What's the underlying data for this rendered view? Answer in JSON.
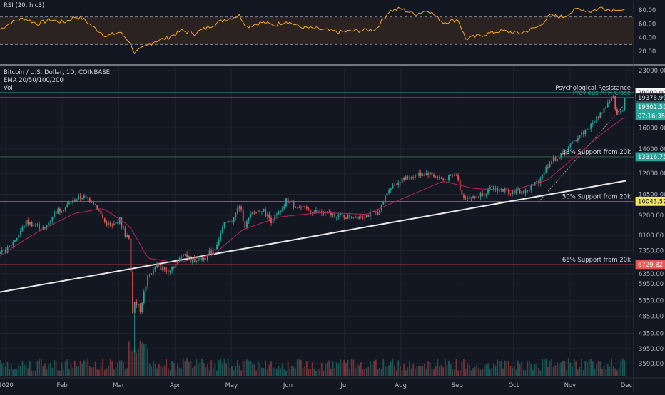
{
  "colors": {
    "background": "#131722",
    "grid": "#1f2330",
    "text": "#b2b5be",
    "up": "#26a69a",
    "down": "#ef5350",
    "rsi_line": "#f5a623",
    "rsi_band": "#2b2222",
    "trendline": "#e8e8e8",
    "ema_fast": "#b7245e",
    "ema_slow": "#8e1f3e",
    "resistance_line": "#26a69a",
    "support_line_33": "#3a6e4a",
    "support_line_50": "#8b8b3a",
    "support_line_66": "#a33a3a",
    "dotted_trend": "#9a9aa0"
  },
  "rsi_panel": {
    "title": "RSI (20, hlc3)",
    "ticks": [
      "80.00",
      "60.00",
      "40.00",
      "20.00"
    ],
    "upper_band": 70,
    "lower_band": 30
  },
  "price_panel": {
    "legend": {
      "symbol": "Bitcoin / U.S. Dollar, 1D, COINBASE",
      "indicator": "EMA 20/50/100/200",
      "volume": "Vol"
    },
    "ticks": [
      "23000.00",
      "16000.00",
      "14000.00",
      "12000.00",
      "10500.00",
      "9200.00",
      "8100.00",
      "7350.00",
      "6350.00",
      "5950.00",
      "5350.00",
      "4850.00",
      "4350.00",
      "3950.00",
      "3590.00"
    ],
    "price_labels": [
      {
        "value": "20000.00",
        "bg": "#ffffff",
        "fg": "#131722",
        "price": 20000
      },
      {
        "value": "19378.99",
        "bg": "#131722",
        "fg": "#d1d4dc",
        "price": 19379,
        "border": "#26a69a"
      },
      {
        "value": "19302.55",
        "bg": "#26a69a",
        "fg": "#ffffff",
        "price": 18250
      },
      {
        "value": "07:16:35",
        "bg": "#26a69a",
        "fg": "#ffffff",
        "price": 17250
      },
      {
        "value": "13316.75",
        "bg": "#26a69a",
        "fg": "#ffffff",
        "price": 13317
      },
      {
        "value": "10043.57",
        "bg": "#f2e85c",
        "fg": "#131722",
        "price": 10044
      },
      {
        "value": "6729.82",
        "bg": "#ef5350",
        "fg": "#ffffff",
        "price": 6730
      }
    ],
    "annotations": [
      {
        "text": "Psychological Resistance",
        "price": 20000,
        "color": "#d1d4dc",
        "level": 20000,
        "line": "#26a69a"
      },
      {
        "text": "Previous ATH Close",
        "price": 19379,
        "color": "#26a69a",
        "level": 19379,
        "line": "#26a69a"
      },
      {
        "text": "33% Support from 20k",
        "price": 13317,
        "color": "#d1d4dc",
        "level": 13317,
        "line": "#3a6e4a"
      },
      {
        "text": "50% Support from 20k",
        "price": 10044,
        "color": "#d1d4dc",
        "level": 10044,
        "line": "#8b8b3a"
      },
      {
        "text": "66% Support from 20k",
        "price": 6730,
        "color": "#d1d4dc",
        "level": 6730,
        "line": "#a33a3a"
      }
    ]
  },
  "x_axis": {
    "labels": [
      "2020",
      "Feb",
      "Mar",
      "Apr",
      "May",
      "Jun",
      "Jul",
      "Aug",
      "Sep",
      "Oct",
      "Nov",
      "Dec"
    ]
  },
  "chart_data": {
    "type": "candlestick",
    "symbol": "Bitcoin / U.S. Dollar, 1D, COINBASE",
    "x_start": "2020-01-01",
    "x_end": "2020-12-01",
    "y_scale": "log",
    "trendline": {
      "from": [
        "2020-01-01",
        5650
      ],
      "to": [
        "2020-12-01",
        11450
      ]
    },
    "dotted_trendline": {
      "from": [
        "2020-10-15",
        10000
      ],
      "to": [
        "2020-12-01",
        18800
      ]
    },
    "close_path": [
      [
        "2020-01-01",
        7200
      ],
      [
        "2020-01-05",
        7400
      ],
      [
        "2020-01-10",
        8000
      ],
      [
        "2020-01-15",
        8800
      ],
      [
        "2020-01-20",
        8650
      ],
      [
        "2020-01-25",
        8400
      ],
      [
        "2020-01-30",
        9350
      ],
      [
        "2020-02-05",
        9700
      ],
      [
        "2020-02-10",
        10150
      ],
      [
        "2020-02-14",
        10350
      ],
      [
        "2020-02-19",
        10100
      ],
      [
        "2020-02-22",
        9650
      ],
      [
        "2020-02-26",
        8800
      ],
      [
        "2020-03-01",
        8550
      ],
      [
        "2020-03-05",
        8950
      ],
      [
        "2020-03-08",
        8100
      ],
      [
        "2020-03-10",
        7900
      ],
      [
        "2020-03-12",
        4950
      ],
      [
        "2020-03-13",
        5300
      ],
      [
        "2020-03-16",
        5050
      ],
      [
        "2020-03-20",
        6200
      ],
      [
        "2020-03-25",
        6700
      ],
      [
        "2020-03-30",
        6450
      ],
      [
        "2020-04-05",
        6800
      ],
      [
        "2020-04-08",
        7300
      ],
      [
        "2020-04-12",
        6900
      ],
      [
        "2020-04-20",
        7050
      ],
      [
        "2020-04-25",
        7500
      ],
      [
        "2020-04-30",
        8650
      ],
      [
        "2020-05-05",
        9000
      ],
      [
        "2020-05-08",
        9800
      ],
      [
        "2020-05-11",
        8600
      ],
      [
        "2020-05-15",
        9300
      ],
      [
        "2020-05-20",
        9550
      ],
      [
        "2020-05-25",
        8900
      ],
      [
        "2020-05-31",
        9450
      ],
      [
        "2020-06-02",
        10100
      ],
      [
        "2020-06-08",
        9700
      ],
      [
        "2020-06-15",
        9450
      ],
      [
        "2020-06-25",
        9250
      ],
      [
        "2020-07-05",
        9100
      ],
      [
        "2020-07-15",
        9200
      ],
      [
        "2020-07-22",
        9400
      ],
      [
        "2020-07-27",
        10950
      ],
      [
        "2020-08-02",
        11450
      ],
      [
        "2020-08-10",
        11850
      ],
      [
        "2020-08-17",
        12050
      ],
      [
        "2020-08-25",
        11500
      ],
      [
        "2020-09-01",
        11900
      ],
      [
        "2020-09-04",
        10450
      ],
      [
        "2020-09-10",
        10250
      ],
      [
        "2020-09-20",
        10900
      ],
      [
        "2020-09-30",
        10700
      ],
      [
        "2020-10-08",
        10650
      ],
      [
        "2020-10-15",
        11450
      ],
      [
        "2020-10-21",
        12900
      ],
      [
        "2020-10-28",
        13500
      ],
      [
        "2020-11-05",
        15100
      ],
      [
        "2020-11-12",
        16200
      ],
      [
        "2020-11-18",
        17800
      ],
      [
        "2020-11-21",
        18650
      ],
      [
        "2020-11-24",
        19300
      ],
      [
        "2020-11-26",
        17200
      ],
      [
        "2020-11-29",
        18200
      ],
      [
        "2020-11-30",
        19302
      ]
    ],
    "ema_path": [
      [
        "2020-01-01",
        7100
      ],
      [
        "2020-01-20",
        8200
      ],
      [
        "2020-02-10",
        9300
      ],
      [
        "2020-02-25",
        9600
      ],
      [
        "2020-03-10",
        8600
      ],
      [
        "2020-03-20",
        7000
      ],
      [
        "2020-04-05",
        6800
      ],
      [
        "2020-04-25",
        7200
      ],
      [
        "2020-05-10",
        8400
      ],
      [
        "2020-05-30",
        9100
      ],
      [
        "2020-06-20",
        9350
      ],
      [
        "2020-07-15",
        9250
      ],
      [
        "2020-08-05",
        10300
      ],
      [
        "2020-08-25",
        11400
      ],
      [
        "2020-09-10",
        10900
      ],
      [
        "2020-10-01",
        10750
      ],
      [
        "2020-10-20",
        11500
      ],
      [
        "2020-11-05",
        13500
      ],
      [
        "2020-11-20",
        15700
      ],
      [
        "2020-11-30",
        17100
      ]
    ],
    "rsi_path": [
      [
        "2020-01-01",
        52
      ],
      [
        "2020-01-07",
        62
      ],
      [
        "2020-01-14",
        68
      ],
      [
        "2020-01-21",
        60
      ],
      [
        "2020-01-28",
        66
      ],
      [
        "2020-02-04",
        62
      ],
      [
        "2020-02-10",
        70
      ],
      [
        "2020-02-14",
        68
      ],
      [
        "2020-02-20",
        55
      ],
      [
        "2020-02-27",
        42
      ],
      [
        "2020-03-05",
        48
      ],
      [
        "2020-03-10",
        35
      ],
      [
        "2020-03-13",
        18
      ],
      [
        "2020-03-17",
        24
      ],
      [
        "2020-03-24",
        35
      ],
      [
        "2020-03-31",
        40
      ],
      [
        "2020-04-07",
        50
      ],
      [
        "2020-04-14",
        46
      ],
      [
        "2020-04-21",
        55
      ],
      [
        "2020-04-30",
        66
      ],
      [
        "2020-05-08",
        72
      ],
      [
        "2020-05-12",
        56
      ],
      [
        "2020-05-20",
        62
      ],
      [
        "2020-05-27",
        58
      ],
      [
        "2020-06-02",
        64
      ],
      [
        "2020-06-10",
        55
      ],
      [
        "2020-06-20",
        52
      ],
      [
        "2020-06-30",
        48
      ],
      [
        "2020-07-10",
        50
      ],
      [
        "2020-07-20",
        52
      ],
      [
        "2020-07-27",
        78
      ],
      [
        "2020-08-02",
        82
      ],
      [
        "2020-08-10",
        74
      ],
      [
        "2020-08-17",
        80
      ],
      [
        "2020-08-25",
        62
      ],
      [
        "2020-09-02",
        66
      ],
      [
        "2020-09-06",
        38
      ],
      [
        "2020-09-15",
        44
      ],
      [
        "2020-09-25",
        50
      ],
      [
        "2020-10-05",
        46
      ],
      [
        "2020-10-15",
        56
      ],
      [
        "2020-10-21",
        72
      ],
      [
        "2020-10-28",
        70
      ],
      [
        "2020-11-05",
        82
      ],
      [
        "2020-11-12",
        78
      ],
      [
        "2020-11-18",
        84
      ],
      [
        "2020-11-22",
        80
      ],
      [
        "2020-11-26",
        82
      ],
      [
        "2020-11-30",
        78
      ]
    ]
  }
}
